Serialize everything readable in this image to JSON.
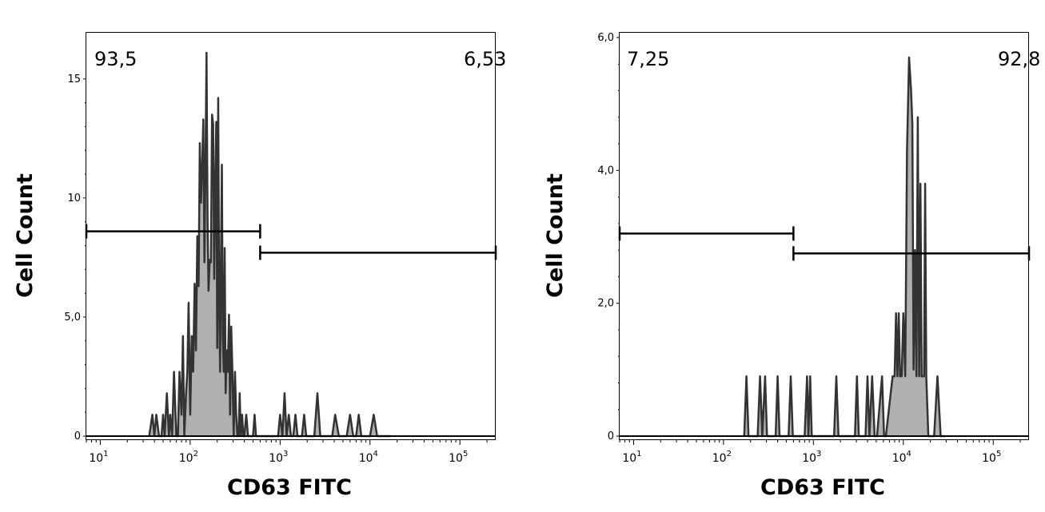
{
  "chart_data": [
    {
      "type": "area",
      "subtype": "flow-cytometry-histogram",
      "xlabel": "CD63 FITC",
      "ylabel": "Cell Count",
      "xscale": "log",
      "xlim": [
        7,
        250000
      ],
      "ylim": [
        0,
        17
      ],
      "y_ticks": [
        0,
        5,
        10,
        15
      ],
      "y_tick_labels": [
        "0",
        "5,0",
        "10",
        "15"
      ],
      "x_ticks": [
        {
          "value": 10,
          "base": "10",
          "exp": "1"
        },
        {
          "value": 100,
          "base": "10",
          "exp": "2"
        },
        {
          "value": 1000,
          "base": "10",
          "exp": "3"
        },
        {
          "value": 10000,
          "base": "10",
          "exp": "4"
        },
        {
          "value": 100000,
          "base": "10",
          "exp": "5"
        }
      ],
      "gates": [
        {
          "percent": "93,5",
          "x_range": [
            7,
            600
          ],
          "y": 8.6
        },
        {
          "percent": "6,53",
          "x_range": [
            600,
            250000
          ],
          "y": 7.7
        }
      ],
      "fill_color": "#b0b0b0",
      "line_color": "#333333",
      "series": [
        {
          "x": [
            35,
            38,
            40,
            42,
            45,
            48,
            50,
            52,
            55,
            58,
            60,
            63,
            66,
            70,
            73,
            76,
            80,
            83,
            86,
            90,
            93,
            96,
            100,
            104,
            108,
            112,
            116,
            120,
            124,
            128,
            132,
            136,
            140,
            144,
            148,
            152,
            156,
            160,
            165,
            170,
            175,
            180,
            185,
            190,
            195,
            200,
            205,
            210,
            215,
            220,
            225,
            230,
            236,
            242,
            248,
            255,
            262,
            270,
            278,
            286,
            295,
            305,
            315,
            325,
            335,
            345,
            355,
            365,
            378,
            390,
            400,
            420,
            440,
            460,
            480,
            500,
            520,
            540,
            560,
            600,
            640,
            680,
            720,
            760,
            800,
            850,
            900,
            950,
            1000,
            1060,
            1120,
            1180,
            1250,
            1320,
            1400,
            1480,
            1560,
            1650,
            1750,
            1850,
            1950,
            2100,
            2250,
            2400,
            2600,
            2800,
            3000,
            3200,
            3500,
            3800,
            4100,
            4500,
            5000,
            5500,
            6000,
            6500,
            7000,
            7500,
            8000,
            9000,
            10000,
            11000,
            12000,
            13000,
            14000,
            15000,
            16000,
            17000
          ],
          "y": [
            0,
            0.9,
            0,
            0.9,
            0,
            0,
            0.9,
            0,
            1.8,
            0,
            0.9,
            0,
            2.7,
            0,
            0,
            2.7,
            0.9,
            4.2,
            0,
            1.8,
            2.7,
            5.6,
            0.9,
            4.2,
            2.7,
            6.4,
            3.6,
            8.4,
            6.3,
            12.3,
            9.8,
            11.4,
            13.3,
            7.3,
            11.3,
            16.1,
            9.1,
            6.1,
            7.4,
            7.3,
            13.5,
            13.1,
            6.6,
            10.4,
            13.2,
            3.7,
            14.2,
            5.7,
            2.7,
            7.5,
            11.4,
            4.2,
            2.7,
            7.9,
            1.8,
            3.6,
            2.7,
            5.1,
            0.9,
            4.6,
            2.7,
            0,
            2.7,
            0.9,
            0,
            0,
            1.8,
            0,
            0.9,
            0,
            0,
            0.9,
            0,
            0,
            0,
            0,
            0.9,
            0,
            0,
            0,
            0,
            0,
            0,
            0,
            0,
            0,
            0,
            0,
            0.9,
            0,
            1.8,
            0,
            0.9,
            0,
            0,
            0.9,
            0,
            0,
            0,
            0.9,
            0,
            0,
            0,
            0,
            1.8,
            0,
            0,
            0,
            0,
            0,
            0.9,
            0,
            0,
            0,
            0.9,
            0,
            0,
            0.9,
            0,
            0,
            0,
            0.9,
            0,
            0,
            0,
            0,
            0,
            0
          ]
        }
      ]
    },
    {
      "type": "area",
      "subtype": "flow-cytometry-histogram",
      "xlabel": "CD63 FITC",
      "ylabel": "Cell Count",
      "xscale": "log",
      "xlim": [
        7,
        250000
      ],
      "ylim": [
        0,
        6.0
      ],
      "y_ticks": [
        0,
        2,
        4,
        6
      ],
      "y_tick_labels": [
        "0",
        "2,0",
        "4,0",
        "6,0"
      ],
      "x_ticks": [
        {
          "value": 10,
          "base": "10",
          "exp": "1"
        },
        {
          "value": 100,
          "base": "10",
          "exp": "2"
        },
        {
          "value": 1000,
          "base": "10",
          "exp": "3"
        },
        {
          "value": 10000,
          "base": "10",
          "exp": "4"
        },
        {
          "value": 100000,
          "base": "10",
          "exp": "5"
        }
      ],
      "gates": [
        {
          "percent": "7,25",
          "x_range": [
            7,
            600
          ],
          "y": 3.05
        },
        {
          "percent": "92,8",
          "x_range": [
            600,
            250000
          ],
          "y": 2.75
        }
      ],
      "fill_color": "#b0b0b0",
      "line_color": "#333333",
      "series": [
        {
          "x": [
            170,
            180,
            190,
            240,
            255,
            270,
            290,
            305,
            380,
            400,
            420,
            530,
            560,
            590,
            800,
            850,
            880,
            920,
            960,
            1700,
            1800,
            1900,
            2900,
            3050,
            3200,
            3800,
            4000,
            4200,
            4500,
            4800,
            5100,
            5800,
            6100,
            6400,
            7600,
            8000,
            8300,
            8600,
            8900,
            9200,
            9600,
            10000,
            10500,
            11000,
            11600,
            12200,
            12600,
            13000,
            13500,
            14000,
            14500,
            15000,
            15500,
            16000,
            16500,
            17000,
            17500,
            18000,
            19000,
            20000,
            21000,
            22000,
            24000,
            26000,
            27000,
            28000,
            29000
          ],
          "y": [
            0,
            0.9,
            0,
            0,
            0.9,
            0,
            0.9,
            0,
            0,
            0.9,
            0,
            0,
            0.9,
            0,
            0,
            0.9,
            0,
            0.9,
            0,
            0,
            0.9,
            0,
            0,
            0.9,
            0,
            0,
            0.9,
            0,
            0.9,
            0,
            0,
            0.9,
            0,
            0,
            0.9,
            0.9,
            1.85,
            0.9,
            1.85,
            0.9,
            0.9,
            1.85,
            0.9,
            4.3,
            5.7,
            5.2,
            4.7,
            1.0,
            2.8,
            0.9,
            4.8,
            0.9,
            3.8,
            0.9,
            0.9,
            0.9,
            3.8,
            0.9,
            0,
            0,
            0,
            0,
            0.9,
            0,
            0,
            0,
            0
          ]
        }
      ]
    }
  ]
}
